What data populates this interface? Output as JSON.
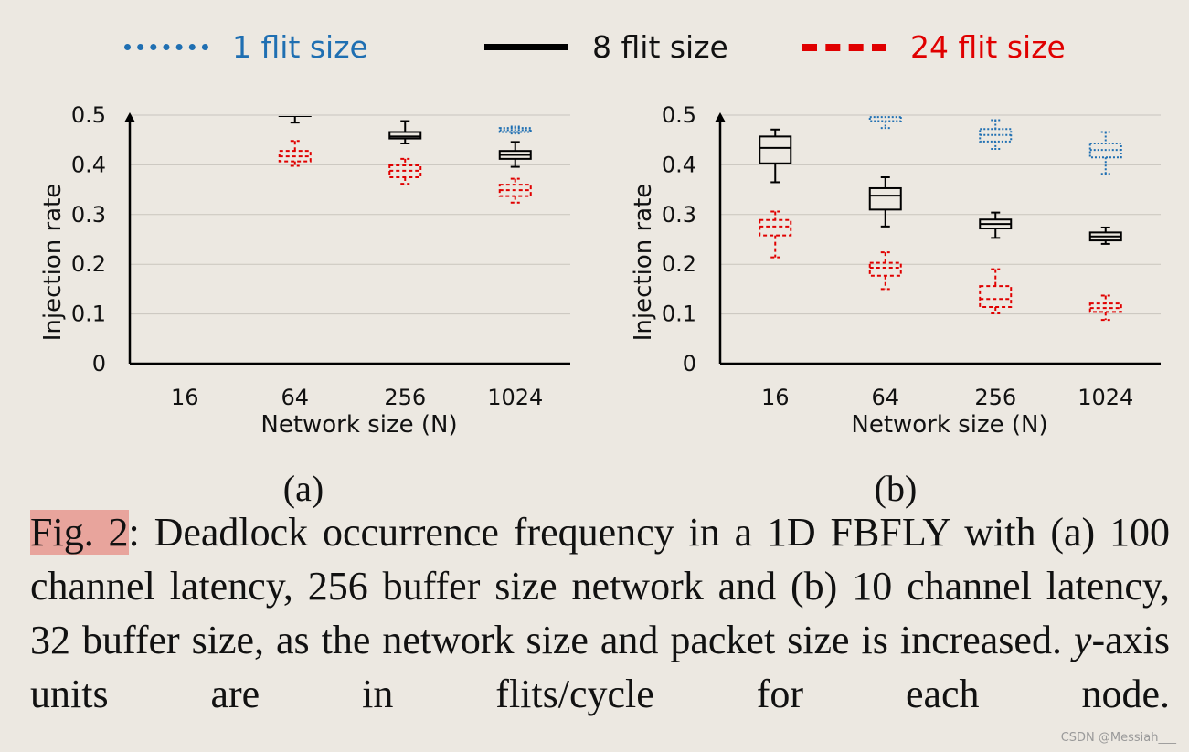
{
  "legend": [
    {
      "label": "1 flit size",
      "color": "#1f6fb2",
      "dash": "8,5",
      "width": 7
    },
    {
      "label": "8 flit size",
      "color": "#000000",
      "dash": "",
      "width": 7
    },
    {
      "label": "24 flit size",
      "color": "#e00000",
      "dash": "24,10",
      "width": 8
    }
  ],
  "chart_data": [
    {
      "type": "boxplot",
      "panel": "(a)",
      "title": "",
      "xlabel": "Network size (N)",
      "ylabel": "Injection rate",
      "categories": [
        "16",
        "64",
        "256",
        "1024"
      ],
      "ylim": [
        0,
        0.5
      ],
      "yticks": [
        "0",
        "0.1",
        "0.2",
        "0.3",
        "0.4",
        "0.5"
      ],
      "grid": true,
      "series": [
        {
          "name": "1 flit size",
          "color": "#1f6fb2",
          "dash": "2,2",
          "boxes": [
            null,
            null,
            null,
            {
              "min": 0.463,
              "q1": 0.466,
              "median": 0.47,
              "q3": 0.474,
              "max": 0.477
            }
          ]
        },
        {
          "name": "8 flit size",
          "color": "#000000",
          "dash": "",
          "boxes": [
            null,
            {
              "min": 0.485,
              "q1": 0.5,
              "median": 0.5,
              "q3": 0.5,
              "max": 0.5
            },
            {
              "min": 0.443,
              "q1": 0.453,
              "median": 0.457,
              "q3": 0.466,
              "max": 0.488
            },
            {
              "min": 0.396,
              "q1": 0.412,
              "median": 0.42,
              "q3": 0.428,
              "max": 0.446
            }
          ]
        },
        {
          "name": "24 flit size",
          "color": "#e00000",
          "dash": "4,3",
          "boxes": [
            null,
            {
              "min": 0.398,
              "q1": 0.407,
              "median": 0.417,
              "q3": 0.428,
              "max": 0.448
            },
            {
              "min": 0.362,
              "q1": 0.375,
              "median": 0.388,
              "q3": 0.399,
              "max": 0.412
            },
            {
              "min": 0.324,
              "q1": 0.337,
              "median": 0.349,
              "q3": 0.36,
              "max": 0.372
            }
          ]
        }
      ]
    },
    {
      "type": "boxplot",
      "panel": "(b)",
      "title": "",
      "xlabel": "Network size (N)",
      "ylabel": "Injection rate",
      "categories": [
        "16",
        "64",
        "256",
        "1024"
      ],
      "ylim": [
        0,
        0.5
      ],
      "yticks": [
        "0",
        "0.1",
        "0.2",
        "0.3",
        "0.4",
        "0.5"
      ],
      "grid": true,
      "series": [
        {
          "name": "1 flit size",
          "color": "#1f6fb2",
          "dash": "2,2",
          "boxes": [
            null,
            {
              "min": 0.474,
              "q1": 0.488,
              "median": 0.496,
              "q3": 0.5,
              "max": 0.5
            },
            {
              "min": 0.432,
              "q1": 0.447,
              "median": 0.46,
              "q3": 0.472,
              "max": 0.49
            },
            {
              "min": 0.382,
              "q1": 0.415,
              "median": 0.43,
              "q3": 0.443,
              "max": 0.466
            }
          ]
        },
        {
          "name": "8 flit size",
          "color": "#000000",
          "dash": "",
          "boxes": [
            {
              "min": 0.365,
              "q1": 0.403,
              "median": 0.434,
              "q3": 0.457,
              "max": 0.471
            },
            {
              "min": 0.276,
              "q1": 0.31,
              "median": 0.338,
              "q3": 0.353,
              "max": 0.375
            },
            {
              "min": 0.253,
              "q1": 0.272,
              "median": 0.281,
              "q3": 0.29,
              "max": 0.304
            },
            {
              "min": 0.241,
              "q1": 0.248,
              "median": 0.256,
              "q3": 0.264,
              "max": 0.274
            }
          ]
        },
        {
          "name": "24 flit size",
          "color": "#e00000",
          "dash": "4,3",
          "boxes": [
            {
              "min": 0.214,
              "q1": 0.258,
              "median": 0.276,
              "q3": 0.289,
              "max": 0.306
            },
            {
              "min": 0.15,
              "q1": 0.177,
              "median": 0.193,
              "q3": 0.203,
              "max": 0.224
            },
            {
              "min": 0.101,
              "q1": 0.114,
              "median": 0.13,
              "q3": 0.156,
              "max": 0.19
            },
            {
              "min": 0.088,
              "q1": 0.104,
              "median": 0.112,
              "q3": 0.121,
              "max": 0.137
            }
          ]
        }
      ]
    }
  ],
  "panels": {
    "a_label": "(a)",
    "b_label": "(b)"
  },
  "caption": {
    "fig_label": "Fig. 2",
    "text_1": ": Deadlock occurrence frequency in a 1D FBFLY with (a) 100 channel latency, 256 buffer size network and (b) 10 channel latency, 32 buffer size, as the network size and packet size is increased. ",
    "y_italic": "y",
    "text_2": "-axis units are in flits/cycle for each node."
  },
  "watermark": "CSDN @Messiah___"
}
